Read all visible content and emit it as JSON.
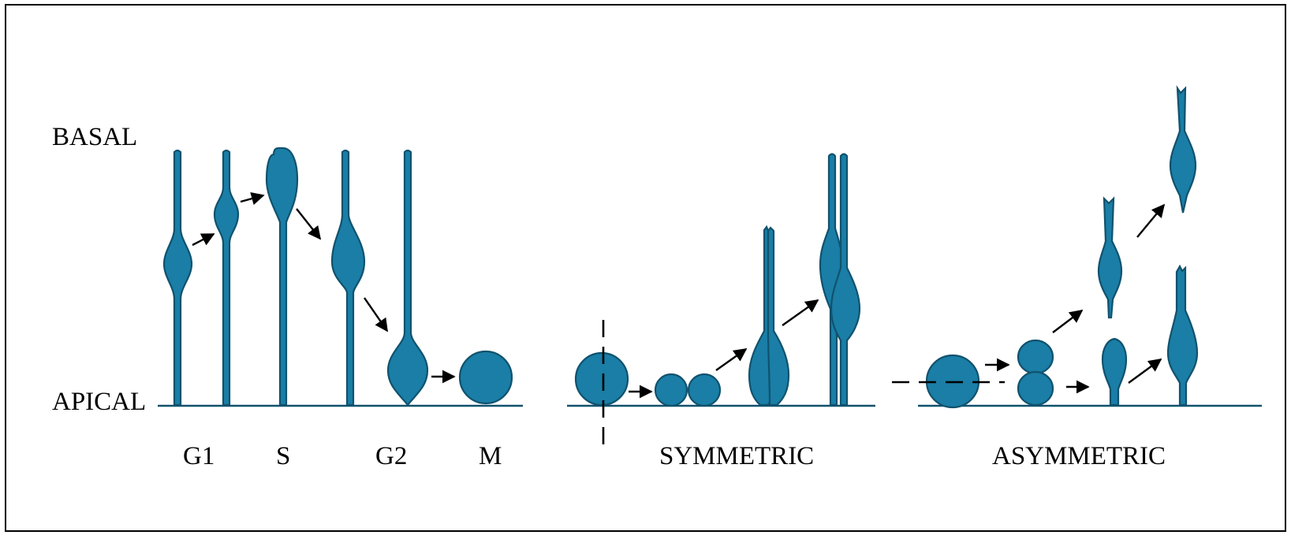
{
  "labels": {
    "basal": "BASAL",
    "apical": "APICAL",
    "g1": "G1",
    "s": "S",
    "g2": "G2",
    "m": "M",
    "symmetric": "SYMMETRIC",
    "asymmetric": "ASYMMETRIC"
  },
  "colors": {
    "cell_fill": "#1a7ea6",
    "cell_outline": "#10526e",
    "arrow": "#000000"
  }
}
